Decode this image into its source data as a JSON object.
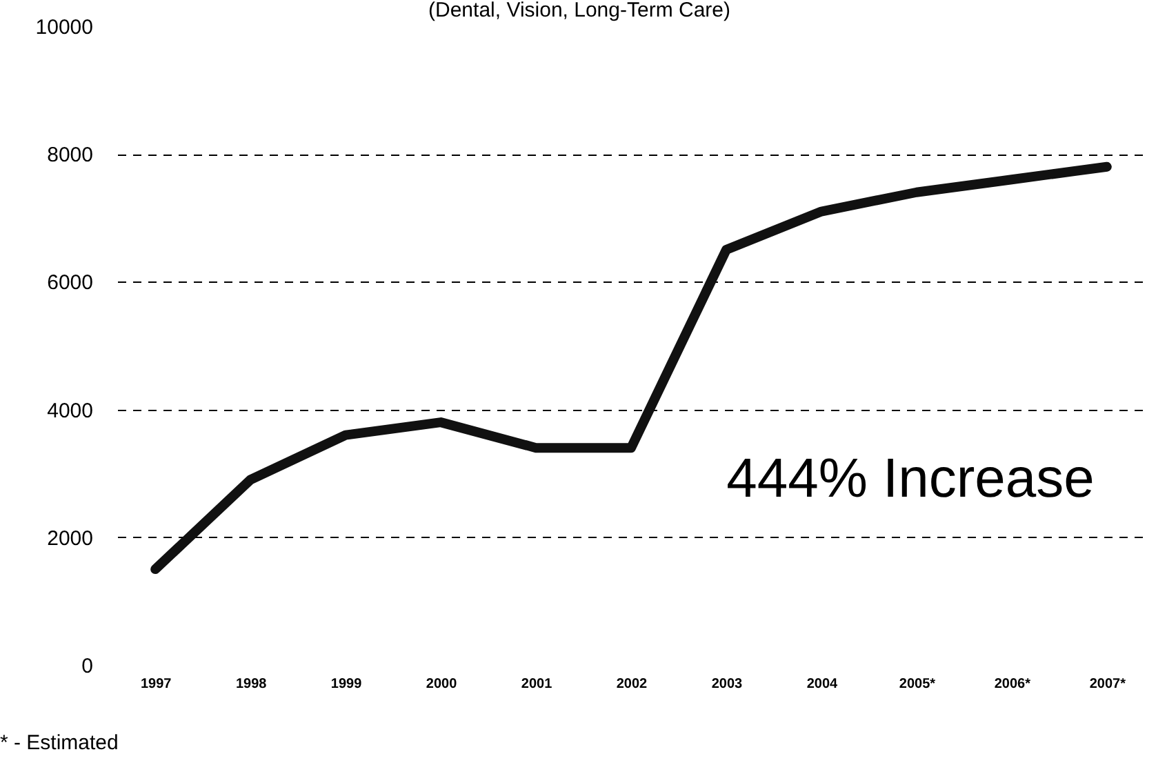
{
  "chart_data": {
    "type": "line",
    "subtitle": "(Dental, Vision, Long-Term Care)",
    "categories": [
      "1997",
      "1998",
      "1999",
      "2000",
      "2001",
      "2002",
      "2003",
      "2004",
      "2005*",
      "2006*",
      "2007*"
    ],
    "series": [
      {
        "color": "#111111",
        "values": [
          1500,
          2900,
          3600,
          3800,
          3400,
          3400,
          6500,
          7100,
          7400,
          7600,
          7800
        ]
      }
    ],
    "ylim": [
      0,
      10000
    ],
    "yticks": [
      0,
      2000,
      4000,
      6000,
      8000,
      10000
    ],
    "grid": "y",
    "line_style": "solid",
    "marker": "none",
    "annotations": [
      "444% Increase",
      "* - Estimated"
    ]
  }
}
